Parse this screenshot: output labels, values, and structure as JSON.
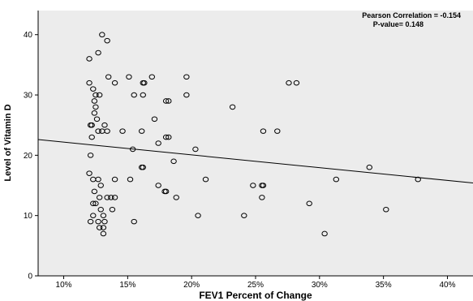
{
  "chart_data": {
    "type": "scatter",
    "xlabel": "FEV1 Percent of Change",
    "ylabel": "Level of Vitamin D",
    "xlim": [
      0.08,
      0.42
    ],
    "ylim": [
      0,
      44
    ],
    "x_ticks": [
      {
        "value": 0.1,
        "label": "10%"
      },
      {
        "value": 0.15,
        "label": "15%"
      },
      {
        "value": 0.2,
        "label": "20%"
      },
      {
        "value": 0.25,
        "label": "25%"
      },
      {
        "value": 0.3,
        "label": "30%"
      },
      {
        "value": 0.35,
        "label": "35%"
      },
      {
        "value": 0.4,
        "label": "40%"
      }
    ],
    "y_ticks": [
      {
        "value": 0,
        "label": "0"
      },
      {
        "value": 10,
        "label": "10"
      },
      {
        "value": 20,
        "label": "20"
      },
      {
        "value": 30,
        "label": "30"
      },
      {
        "value": 40,
        "label": "40"
      }
    ],
    "grid": false,
    "annotations": [
      {
        "label": "Pearson Correlation = -0.154"
      },
      {
        "label": "P-value= 0.148"
      }
    ],
    "fit_line": {
      "x": [
        0.08,
        0.42
      ],
      "y": [
        22.6,
        15.4
      ]
    },
    "colors": {
      "plot_background": "#ececec",
      "marker_stroke": "#000000",
      "line": "#000000"
    },
    "points": [
      {
        "x": 0.13,
        "y": 40
      },
      {
        "x": 0.134,
        "y": 39
      },
      {
        "x": 0.127,
        "y": 37
      },
      {
        "x": 0.12,
        "y": 36
      },
      {
        "x": 0.135,
        "y": 33
      },
      {
        "x": 0.151,
        "y": 33
      },
      {
        "x": 0.169,
        "y": 33
      },
      {
        "x": 0.196,
        "y": 33
      },
      {
        "x": 0.12,
        "y": 32
      },
      {
        "x": 0.14,
        "y": 32
      },
      {
        "x": 0.162,
        "y": 32
      },
      {
        "x": 0.163,
        "y": 32
      },
      {
        "x": 0.276,
        "y": 32
      },
      {
        "x": 0.282,
        "y": 32
      },
      {
        "x": 0.123,
        "y": 31
      },
      {
        "x": 0.125,
        "y": 30
      },
      {
        "x": 0.128,
        "y": 30
      },
      {
        "x": 0.155,
        "y": 30
      },
      {
        "x": 0.162,
        "y": 30
      },
      {
        "x": 0.196,
        "y": 30
      },
      {
        "x": 0.124,
        "y": 29
      },
      {
        "x": 0.18,
        "y": 29
      },
      {
        "x": 0.182,
        "y": 29
      },
      {
        "x": 0.125,
        "y": 28
      },
      {
        "x": 0.232,
        "y": 28
      },
      {
        "x": 0.124,
        "y": 27
      },
      {
        "x": 0.126,
        "y": 26
      },
      {
        "x": 0.171,
        "y": 26
      },
      {
        "x": 0.121,
        "y": 25
      },
      {
        "x": 0.122,
        "y": 25
      },
      {
        "x": 0.132,
        "y": 25
      },
      {
        "x": 0.127,
        "y": 24
      },
      {
        "x": 0.13,
        "y": 24
      },
      {
        "x": 0.134,
        "y": 24
      },
      {
        "x": 0.146,
        "y": 24
      },
      {
        "x": 0.161,
        "y": 24
      },
      {
        "x": 0.256,
        "y": 24
      },
      {
        "x": 0.267,
        "y": 24
      },
      {
        "x": 0.122,
        "y": 23
      },
      {
        "x": 0.18,
        "y": 23
      },
      {
        "x": 0.182,
        "y": 23
      },
      {
        "x": 0.174,
        "y": 22
      },
      {
        "x": 0.154,
        "y": 21
      },
      {
        "x": 0.203,
        "y": 21
      },
      {
        "x": 0.121,
        "y": 20
      },
      {
        "x": 0.186,
        "y": 19
      },
      {
        "x": 0.161,
        "y": 18
      },
      {
        "x": 0.162,
        "y": 18
      },
      {
        "x": 0.339,
        "y": 18
      },
      {
        "x": 0.12,
        "y": 17
      },
      {
        "x": 0.123,
        "y": 16
      },
      {
        "x": 0.127,
        "y": 16
      },
      {
        "x": 0.14,
        "y": 16
      },
      {
        "x": 0.152,
        "y": 16
      },
      {
        "x": 0.211,
        "y": 16
      },
      {
        "x": 0.313,
        "y": 16
      },
      {
        "x": 0.377,
        "y": 16
      },
      {
        "x": 0.129,
        "y": 15
      },
      {
        "x": 0.174,
        "y": 15
      },
      {
        "x": 0.248,
        "y": 15
      },
      {
        "x": 0.255,
        "y": 15
      },
      {
        "x": 0.256,
        "y": 15
      },
      {
        "x": 0.124,
        "y": 14
      },
      {
        "x": 0.179,
        "y": 14
      },
      {
        "x": 0.18,
        "y": 14
      },
      {
        "x": 0.128,
        "y": 13
      },
      {
        "x": 0.134,
        "y": 13
      },
      {
        "x": 0.137,
        "y": 13
      },
      {
        "x": 0.14,
        "y": 13
      },
      {
        "x": 0.188,
        "y": 13
      },
      {
        "x": 0.255,
        "y": 13
      },
      {
        "x": 0.123,
        "y": 12
      },
      {
        "x": 0.125,
        "y": 12
      },
      {
        "x": 0.292,
        "y": 12
      },
      {
        "x": 0.129,
        "y": 11
      },
      {
        "x": 0.138,
        "y": 11
      },
      {
        "x": 0.352,
        "y": 11
      },
      {
        "x": 0.123,
        "y": 10
      },
      {
        "x": 0.131,
        "y": 10
      },
      {
        "x": 0.205,
        "y": 10
      },
      {
        "x": 0.241,
        "y": 10
      },
      {
        "x": 0.121,
        "y": 9
      },
      {
        "x": 0.127,
        "y": 9
      },
      {
        "x": 0.132,
        "y": 9
      },
      {
        "x": 0.155,
        "y": 9
      },
      {
        "x": 0.128,
        "y": 8
      },
      {
        "x": 0.131,
        "y": 8
      },
      {
        "x": 0.131,
        "y": 7
      },
      {
        "x": 0.304,
        "y": 7
      }
    ]
  }
}
